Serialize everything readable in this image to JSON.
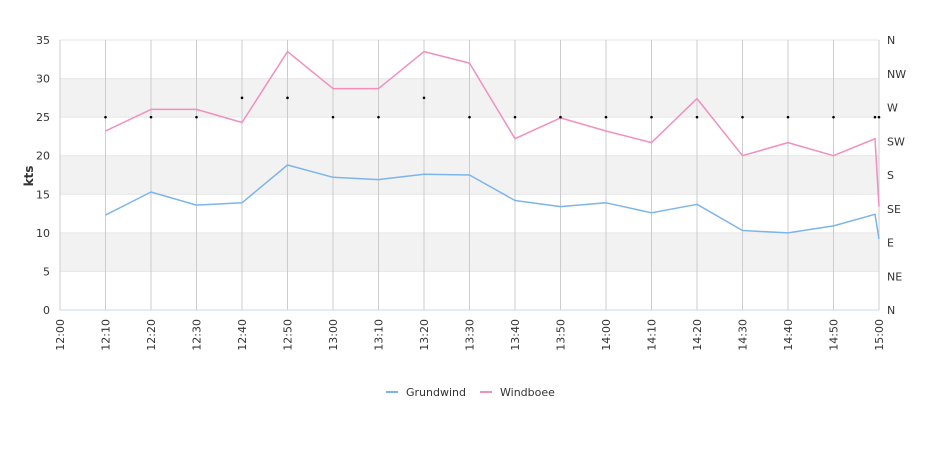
{
  "chart_data": {
    "type": "line",
    "ylabel": "kts",
    "x": [
      "12:00",
      "12:10",
      "12:20",
      "12:30",
      "12:40",
      "12:50",
      "13:00",
      "13:10",
      "13:20",
      "13:30",
      "13:40",
      "13:50",
      "14:00",
      "14:10",
      "14:20",
      "14:30",
      "14:40",
      "14:50",
      "15:00"
    ],
    "ylim": [
      0,
      35
    ],
    "yticks": [
      0,
      5,
      10,
      15,
      20,
      25,
      30,
      35
    ],
    "grid": true,
    "legend_position": "bottom",
    "wind_direction_axis": {
      "labels": [
        "N",
        "NE",
        "E",
        "SE",
        "S",
        "SW",
        "W",
        "NW",
        "N"
      ],
      "range_deg": [
        0,
        360
      ]
    },
    "series": [
      {
        "name": "Grundwind",
        "color": "#7cb5ec",
        "points": [
          [
            "12:10",
            12.3
          ],
          [
            "12:20",
            15.3
          ],
          [
            "12:30",
            13.6
          ],
          [
            "12:40",
            13.9
          ],
          [
            "12:50",
            18.8
          ],
          [
            "13:00",
            17.2
          ],
          [
            "13:10",
            16.9
          ],
          [
            "13:20",
            17.6
          ],
          [
            "13:30",
            17.5
          ],
          [
            "13:40",
            14.2
          ],
          [
            "13:50",
            13.4
          ],
          [
            "14:00",
            13.9
          ],
          [
            "14:10",
            12.6
          ],
          [
            "14:20",
            13.7
          ],
          [
            "14:30",
            10.3
          ],
          [
            "14:40",
            10.0
          ],
          [
            "14:50",
            10.9
          ],
          [
            "15:00",
            12.4
          ],
          [
            "15:00",
            9.2
          ]
        ]
      },
      {
        "name": "Windboee",
        "color": "#f28fbf",
        "points": [
          [
            "12:10",
            23.2
          ],
          [
            "12:20",
            26.0
          ],
          [
            "12:30",
            26.0
          ],
          [
            "12:40",
            24.3
          ],
          [
            "12:50",
            33.5
          ],
          [
            "13:00",
            28.7
          ],
          [
            "13:10",
            28.7
          ],
          [
            "13:20",
            33.5
          ],
          [
            "13:30",
            32.0
          ],
          [
            "13:40",
            22.2
          ],
          [
            "13:50",
            24.9
          ],
          [
            "14:00",
            23.2
          ],
          [
            "14:10",
            21.7
          ],
          [
            "14:20",
            27.4
          ],
          [
            "14:30",
            20.0
          ],
          [
            "14:40",
            21.7
          ],
          [
            "14:50",
            20.0
          ],
          [
            "15:00",
            22.2
          ],
          [
            "15:00",
            13.4
          ]
        ]
      }
    ],
    "direction_markers": {
      "color": "#000000",
      "points": [
        [
          "12:10",
          25.0
        ],
        [
          "12:20",
          25.0
        ],
        [
          "12:30",
          25.0
        ],
        [
          "12:40",
          27.5
        ],
        [
          "12:50",
          27.5
        ],
        [
          "13:00",
          25.0
        ],
        [
          "13:10",
          25.0
        ],
        [
          "13:20",
          27.5
        ],
        [
          "13:30",
          25.0
        ],
        [
          "13:40",
          25.0
        ],
        [
          "13:50",
          25.0
        ],
        [
          "14:00",
          25.0
        ],
        [
          "14:10",
          25.0
        ],
        [
          "14:20",
          25.0
        ],
        [
          "14:30",
          25.0
        ],
        [
          "14:40",
          25.0
        ],
        [
          "14:50",
          25.0
        ],
        [
          "15:00",
          25.0
        ],
        [
          "15:00",
          25.0
        ]
      ]
    }
  }
}
